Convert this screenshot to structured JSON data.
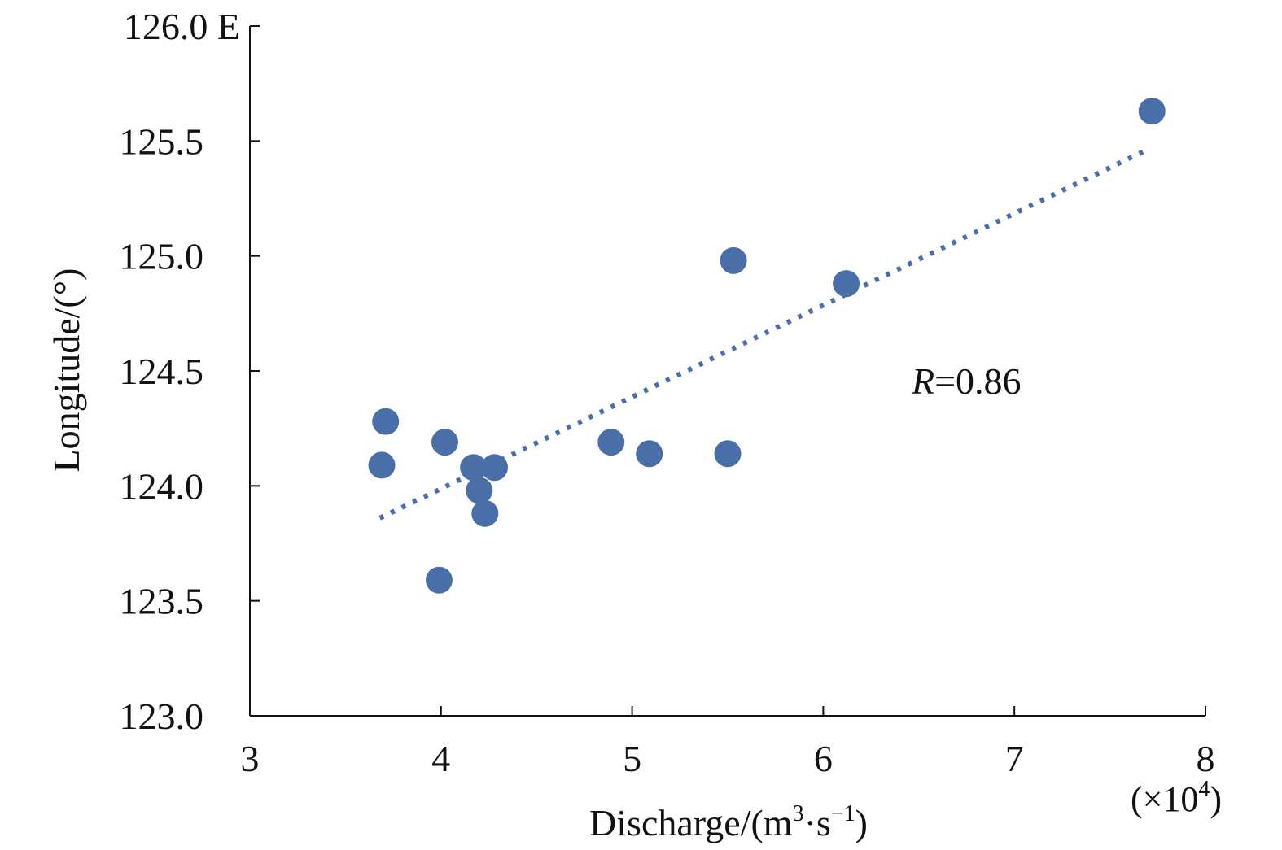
{
  "chart_data": {
    "type": "scatter",
    "title": "",
    "xlabel": "Discharge/(m³·s⁻¹)",
    "xlabel_parts": {
      "base": "Discharge/(m",
      "sup1": "3",
      "mid": "·s",
      "sup2": "−1",
      "end": ")"
    },
    "x_multiplier": {
      "base": "(×10",
      "sup": "4",
      "end": ")"
    },
    "ylabel": "Longitude/(°)",
    "xlim": [
      3,
      8
    ],
    "ylim": [
      123.0,
      126.0
    ],
    "xticks": [
      3,
      4,
      5,
      6,
      7,
      8
    ],
    "xtick_labels": [
      "3",
      "4",
      "5",
      "6",
      "7",
      "8"
    ],
    "yticks": [
      123.0,
      123.5,
      124.0,
      124.5,
      125.0,
      125.5,
      126.0
    ],
    "ytick_labels": [
      "123.0",
      "123.5",
      "124.0",
      "124.5",
      "125.0",
      "125.5",
      "126.0 E"
    ],
    "grid": false,
    "color": "#4a6fa8",
    "points": [
      {
        "x": 3.71,
        "y": 124.28
      },
      {
        "x": 3.69,
        "y": 124.09
      },
      {
        "x": 4.02,
        "y": 124.19
      },
      {
        "x": 4.17,
        "y": 124.08
      },
      {
        "x": 4.28,
        "y": 124.08
      },
      {
        "x": 4.2,
        "y": 123.98
      },
      {
        "x": 4.23,
        "y": 123.88
      },
      {
        "x": 3.99,
        "y": 123.59
      },
      {
        "x": 4.89,
        "y": 124.19
      },
      {
        "x": 5.09,
        "y": 124.14
      },
      {
        "x": 5.5,
        "y": 124.14
      },
      {
        "x": 5.53,
        "y": 124.98
      },
      {
        "x": 6.12,
        "y": 124.88
      },
      {
        "x": 7.72,
        "y": 125.63
      }
    ],
    "trendline": {
      "x": [
        3.68,
        7.69
      ],
      "y": [
        123.86,
        125.46
      ],
      "style": "dotted"
    },
    "annotation": {
      "italic": "R",
      "text": "=0.86"
    }
  }
}
